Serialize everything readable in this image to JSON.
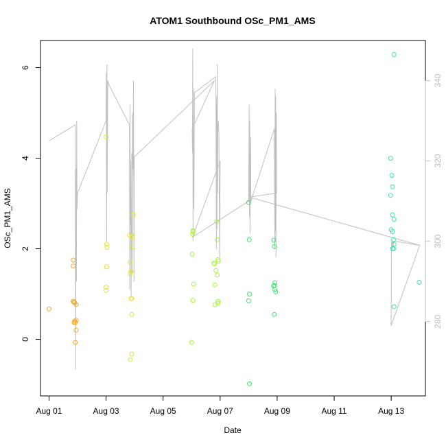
{
  "chart_data": {
    "type": "scatter",
    "title": "ATOM1 Southbound OSc_PM1_AMS",
    "xlabel": "Date",
    "ylabel": "OSc_PM1_AMS",
    "x_unit": "days since Aug 01 00:00",
    "xlim": [
      -0.3,
      13.2
    ],
    "ylim": [
      -1.25,
      6.6
    ],
    "y2lim": [
      261.5,
      350
    ],
    "x_ticks": [
      {
        "value": 0,
        "label": "Aug 01"
      },
      {
        "value": 2,
        "label": "Aug 03"
      },
      {
        "value": 4,
        "label": "Aug 05"
      },
      {
        "value": 6,
        "label": "Aug 07"
      },
      {
        "value": 8,
        "label": "Aug 09"
      },
      {
        "value": 10,
        "label": "Aug 11"
      },
      {
        "value": 12,
        "label": "Aug 13"
      }
    ],
    "y_ticks": [
      0,
      2,
      4,
      6
    ],
    "y2_ticks": [
      280,
      300,
      320,
      340
    ],
    "grid": false,
    "legend": "none",
    "colors": {
      "axis": "#000000",
      "secondary_axis": "#bebebe",
      "line": "#c0c0c0"
    },
    "scatter": {
      "series": [
        {
          "color": "#f5a623",
          "points": [
            [
              0.0,
              0.67
            ],
            [
              0.85,
              1.75
            ],
            [
              0.85,
              1.62
            ],
            [
              0.85,
              0.84
            ],
            [
              0.87,
              0.82
            ],
            [
              0.88,
              0.37
            ],
            [
              0.9,
              0.81
            ],
            [
              0.9,
              0.4
            ],
            [
              0.92,
              0.37
            ],
            [
              0.92,
              -0.07
            ],
            [
              0.95,
              0.2
            ],
            [
              0.95,
              0.77
            ],
            [
              0.95,
              0.42
            ]
          ]
        },
        {
          "color": "#e5e52b",
          "points": [
            [
              2.0,
              4.47
            ],
            [
              2.02,
              2.1
            ],
            [
              2.03,
              2.03
            ],
            [
              2.02,
              1.6
            ],
            [
              2.0,
              1.15
            ],
            [
              2.0,
              1.08
            ],
            [
              2.82,
              2.3
            ],
            [
              2.85,
              1.7
            ],
            [
              2.85,
              1.45
            ],
            [
              2.88,
              1.5
            ],
            [
              2.88,
              0.9
            ],
            [
              2.9,
              0.9
            ],
            [
              2.9,
              0.55
            ],
            [
              2.9,
              -0.33
            ],
            [
              2.85,
              -0.45
            ],
            [
              2.9,
              2.28
            ],
            [
              2.92,
              2.25
            ],
            [
              2.92,
              2.04
            ],
            [
              2.95,
              2.75
            ]
          ]
        },
        {
          "color": "#a6f53d",
          "points": [
            [
              5.0,
              -0.07
            ],
            [
              5.02,
              1.88
            ],
            [
              5.04,
              2.32
            ],
            [
              5.05,
              2.38
            ],
            [
              5.05,
              2.4
            ],
            [
              5.07,
              1.22
            ],
            [
              5.05,
              0.86
            ],
            [
              5.78,
              1.68
            ],
            [
              5.8,
              1.67
            ],
            [
              5.82,
              1.2
            ],
            [
              5.82,
              0.76
            ],
            [
              5.85,
              1.52
            ],
            [
              5.88,
              2.6
            ],
            [
              5.9,
              2.2
            ],
            [
              5.92,
              1.76
            ],
            [
              5.94,
              1.73
            ],
            [
              5.9,
              1.42
            ],
            [
              5.92,
              0.8
            ],
            [
              5.93,
              0.84
            ]
          ]
        },
        {
          "color": "#3de56b",
          "points": [
            [
              7.0,
              3.02
            ],
            [
              7.02,
              2.2
            ],
            [
              7.03,
              1.0
            ],
            [
              7.0,
              0.85
            ],
            [
              7.03,
              -0.98
            ],
            [
              7.88,
              2.19
            ],
            [
              7.9,
              2.05
            ],
            [
              7.88,
              1.18
            ],
            [
              7.9,
              1.19
            ],
            [
              7.92,
              1.25
            ],
            [
              7.92,
              1.1
            ],
            [
              7.95,
              1.05
            ],
            [
              7.9,
              0.55
            ]
          ]
        },
        {
          "color": "#3de5b0",
          "points": [
            [
              11.98,
              4.0
            ],
            [
              12.02,
              3.62
            ],
            [
              12.05,
              3.37
            ],
            [
              11.98,
              3.18
            ],
            [
              12.05,
              2.75
            ],
            [
              12.1,
              2.65
            ],
            [
              12.0,
              2.42
            ],
            [
              12.05,
              2.38
            ],
            [
              12.08,
              2.2
            ],
            [
              12.1,
              2.1
            ],
            [
              12.08,
              2.0
            ],
            [
              12.05,
              2.0
            ],
            [
              12.1,
              0.72
            ],
            [
              12.1,
              6.29
            ],
            [
              12.98,
              1.26
            ]
          ]
        }
      ]
    },
    "line": {
      "axis": "right",
      "x": [
        0.0,
        0.92,
        0.93,
        0.95,
        0.96,
        0.97,
        0.98,
        1.0,
        2.0,
        2.01,
        2.02,
        2.03,
        2.04,
        2.06,
        2.1,
        2.82,
        2.83,
        2.84,
        2.85,
        2.86,
        2.88,
        2.9,
        2.92,
        2.93,
        2.95,
        2.96,
        2.98,
        2.99,
        5.8,
        5.02,
        5.03,
        5.04,
        5.05,
        5.06,
        5.08,
        5.1,
        5.85,
        5.87,
        5.88,
        5.89,
        5.9,
        5.91,
        5.92,
        5.94,
        5.96,
        5.98,
        6.0,
        5.03,
        7.0,
        7.02,
        7.03,
        7.04,
        7.05,
        7.07,
        7.08,
        7.9,
        7.92,
        7.93,
        7.94,
        7.95,
        7.96,
        7.97,
        7.98,
        7.02,
        13.0,
        12.0,
        12.01,
        12.02,
        12.03,
        12.04,
        12.05,
        12.06,
        12.08,
        12.1,
        12.12,
        12.14,
        12.15,
        12.16,
        13.0
      ],
      "y": [
        325,
        329,
        268,
        318,
        290,
        330,
        308,
        312,
        330,
        342,
        300,
        344,
        312,
        340,
        339,
        329,
        288,
        334,
        304,
        320,
        286,
        322,
        292,
        332,
        318,
        340,
        290,
        321,
        340,
        328,
        322,
        348,
        300,
        338,
        308,
        337,
        341,
        298,
        336,
        303,
        344,
        312,
        328,
        330,
        326,
        296,
        320,
        301,
        310,
        334,
        306,
        330,
        302,
        326,
        310,
        328,
        298,
        338,
        302,
        336,
        296,
        332,
        312,
        311,
        299,
        279,
        299,
        300,
        298,
        300,
        300,
        300,
        299,
        300,
        300,
        300,
        300,
        300,
        299
      ]
    }
  }
}
